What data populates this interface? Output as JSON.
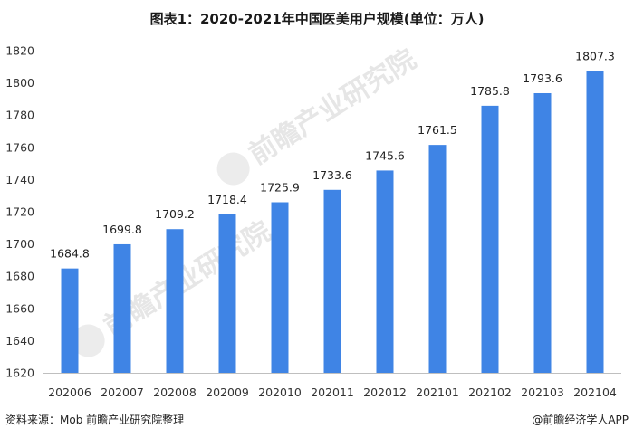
{
  "chart_data": {
    "type": "bar",
    "title": "图表1：2020-2021年中国医美用户规模(单位：万人)",
    "categories": [
      "202006",
      "202007",
      "202008",
      "202009",
      "202010",
      "202011",
      "202012",
      "202101",
      "202102",
      "202103",
      "202104"
    ],
    "values": [
      1684.8,
      1699.8,
      1709.2,
      1718.4,
      1725.9,
      1733.6,
      1745.6,
      1761.5,
      1785.8,
      1793.6,
      1807.3
    ],
    "data_labels": [
      "1684.8",
      "1699.8",
      "1709.2",
      "1718.4",
      "1725.9",
      "1733.6",
      "1745.6",
      "1761.5",
      "1785.8",
      "1793.6",
      "1807.3"
    ],
    "ylim": [
      1620,
      1820
    ],
    "yticks": [
      1620,
      1640,
      1660,
      1680,
      1700,
      1720,
      1740,
      1760,
      1780,
      1800,
      1820
    ],
    "xlabel": "",
    "ylabel": "",
    "grid": false,
    "bar_color": "#3f84e5"
  },
  "footer": {
    "source": "资料来源：Mob 前瞻产业研究院整理",
    "brand": "@前瞻经济学人APP"
  },
  "watermark": {
    "text": "前瞻产业研究院"
  },
  "colors": {
    "bar": "#3f84e5",
    "axis": "#bfbfbf"
  }
}
